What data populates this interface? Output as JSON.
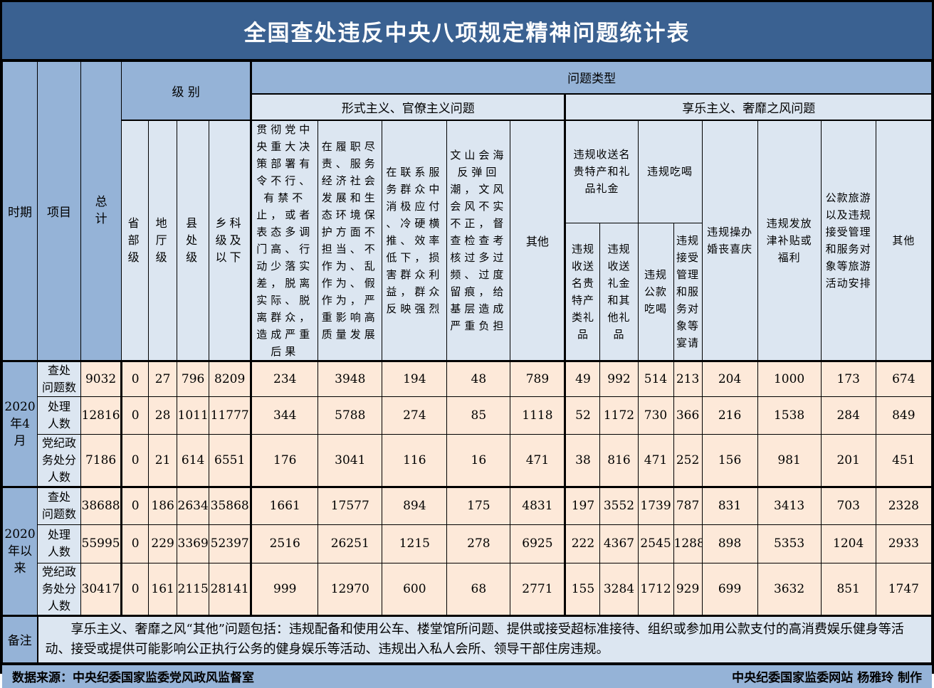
{
  "title": "全国查处违反中央八项规定精神问题统计表",
  "colors": {
    "title": "#3A6191",
    "mid": "#95B3D7",
    "light": "#DCE6F1",
    "data": "#FDE9D9",
    "border": "#000000"
  },
  "header": {
    "period": "时期",
    "item": "项目",
    "total": "总\n计",
    "level": "级 别",
    "problem_type": "问题类型",
    "group_formalism": "形式主义、官僚主义问题",
    "group_hedonism": "享乐主义、奢靡之风问题",
    "level_cols": [
      "省\n部\n级",
      "地\n厅\n级",
      "县\n处\n级",
      "乡科\n级及\n以下"
    ],
    "formalism_cols": [
      "贯彻党中\n央重大决\n策部署有\n令不行、\n有禁不\n止，或者\n表态多调\n门高、行\n动少落实\n差，脱离\n实际、脱\n离群众，\n造成严重\n后果",
      "在履职尽\n责、服务\n经济社会\n发展和生\n态环境保\n护方面不\n担当、不\n作为、乱\n作为、假\n作为，严\n重影响高\n质量发展",
      "在联系服\n务群众中\n消极应付\n、冷硬横\n推、效率\n低下，损\n害群众利\n益，群众\n反映强烈",
      "文山会海\n反弹回\n潮，文风\n会风不实\n不正，督\n查检查考\n核过多过\n频、过度\n留痕，给\n基层造成\n严重负担",
      "其他"
    ],
    "hedonism_group1": {
      "label": "违规收送名\n贵特产和礼\n品礼金",
      "subs": [
        "违规\n收送\n名贵\n特产\n类礼\n品",
        "违规\n收送\n礼金\n和其\n他礼\n品"
      ]
    },
    "hedonism_group2": {
      "label": "违规吃喝",
      "subs": [
        "违规\n公款\n吃喝",
        "违规\n接受\n管理\n和服\n务对\n象等\n宴请"
      ]
    },
    "hedonism_cols": [
      "违规操办\n婚丧喜庆",
      "违规发放\n津补贴或\n福利",
      "公款旅游\n以及违规\n接受管理\n和服务对\n象等旅游\n活动安排",
      "其他"
    ]
  },
  "periods": [
    {
      "label": "2020\n年4\n月",
      "rows": [
        {
          "label": "查处\n问题数",
          "values": [
            9032,
            0,
            27,
            796,
            8209,
            234,
            3948,
            194,
            48,
            789,
            49,
            992,
            514,
            213,
            204,
            1000,
            173,
            674
          ]
        },
        {
          "label": "处理\n人数",
          "values": [
            12816,
            0,
            28,
            1011,
            11777,
            344,
            5788,
            274,
            85,
            1118,
            52,
            1172,
            730,
            366,
            216,
            1538,
            284,
            849
          ]
        },
        {
          "label": "党纪政\n务处分\n人数",
          "values": [
            7186,
            0,
            21,
            614,
            6551,
            176,
            3041,
            116,
            16,
            471,
            38,
            816,
            471,
            252,
            156,
            981,
            201,
            451
          ]
        }
      ]
    },
    {
      "label": "2020\n年以\n来",
      "rows": [
        {
          "label": "查处\n问题数",
          "values": [
            38688,
            0,
            186,
            2634,
            35868,
            1661,
            17577,
            894,
            175,
            4831,
            197,
            3552,
            1739,
            787,
            831,
            3413,
            703,
            2328
          ]
        },
        {
          "label": "处理\n人数",
          "values": [
            55995,
            0,
            229,
            3369,
            52397,
            2516,
            26251,
            1215,
            278,
            6925,
            222,
            4367,
            2545,
            1288,
            898,
            5353,
            1204,
            2933
          ]
        },
        {
          "label": "党纪政\n务处分\n人数",
          "values": [
            30417,
            0,
            161,
            2115,
            28141,
            999,
            12970,
            600,
            68,
            2771,
            155,
            3284,
            1712,
            929,
            699,
            3632,
            851,
            1747
          ]
        }
      ]
    }
  ],
  "note": {
    "label": "备注",
    "text": "享乐主义、奢靡之风“其他”问题包括：违规配备和使用公车、楼堂馆所问题、提供或接受超标准接待、组织或参加用公款支付的高消费娱乐健身等活动、接受或提供可能影响公正执行公务的健身娱乐等活动、违规出入私人会所、领导干部住房违规。"
  },
  "footer": {
    "left": "数据来源：中央纪委国家监委党风政风监督室",
    "right": "中央纪委国家监委网站 杨雅玲 制作"
  }
}
